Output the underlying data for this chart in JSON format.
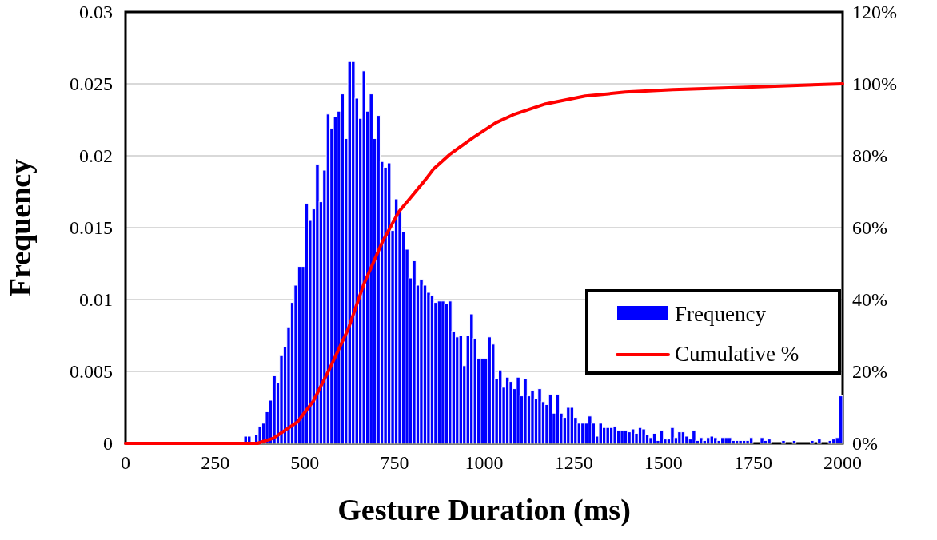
{
  "chart_data": {
    "type": "histogram",
    "xlabel": "Gesture Duration (ms)",
    "ylabel": "Frequency",
    "bins": [
      330,
      340,
      350,
      360,
      370,
      380,
      390,
      400,
      410,
      420,
      430,
      440,
      450,
      460,
      470,
      480,
      490,
      500,
      510,
      520,
      530,
      540,
      550,
      560,
      570,
      580,
      590,
      600,
      610,
      620,
      630,
      640,
      650,
      660,
      670,
      680,
      690,
      700,
      710,
      720,
      730,
      740,
      750,
      760,
      770,
      780,
      790,
      800,
      810,
      820,
      830,
      840,
      850,
      860,
      870,
      880,
      890,
      900,
      910,
      920,
      930,
      940,
      950,
      960,
      970,
      980,
      990,
      1000,
      1010,
      1020,
      1030,
      1040,
      1050,
      1060,
      1070,
      1080,
      1090,
      1100,
      1110,
      1120,
      1130,
      1140,
      1150,
      1160,
      1170,
      1180,
      1190,
      1200,
      1210,
      1220,
      1230,
      1240,
      1250,
      1260,
      1270,
      1280,
      1290,
      1300,
      1310,
      1320,
      1330,
      1340,
      1350,
      1360,
      1370,
      1380,
      1390,
      1400,
      1410,
      1420,
      1430,
      1440,
      1450,
      1460,
      1470,
      1480,
      1490,
      1500,
      1510,
      1520,
      1530,
      1540,
      1550,
      1560,
      1570,
      1580,
      1590,
      1600,
      1610,
      1620,
      1630,
      1640,
      1650,
      1660,
      1670,
      1680,
      1690,
      1700,
      1710,
      1720,
      1730,
      1740,
      1750,
      1770,
      1780,
      1790,
      1800,
      1830,
      1840,
      1860,
      1870,
      1910,
      1920,
      1930,
      1940,
      1960,
      1970,
      1980,
      1990,
      2000
    ],
    "series": [
      {
        "name": "Frequency",
        "color": "#0000ff",
        "values": [
          0.0005,
          0.0005,
          0,
          0.0006,
          0.0012,
          0.0014,
          0.0022,
          0.003,
          0.0047,
          0.0042,
          0.0061,
          0.0067,
          0.0081,
          0.0098,
          0.011,
          0.0123,
          0.0123,
          0.0167,
          0.0155,
          0.0163,
          0.0194,
          0.0168,
          0.019,
          0.0229,
          0.0219,
          0.0227,
          0.0231,
          0.0243,
          0.0212,
          0.0266,
          0.0266,
          0.024,
          0.0226,
          0.0259,
          0.0231,
          0.0243,
          0.0212,
          0.0228,
          0.0196,
          0.0192,
          0.0195,
          0.0148,
          0.017,
          0.0161,
          0.0147,
          0.0135,
          0.0115,
          0.0127,
          0.011,
          0.0114,
          0.011,
          0.0105,
          0.0103,
          0.0098,
          0.0099,
          0.0099,
          0.0097,
          0.0099,
          0.0078,
          0.0074,
          0.0075,
          0.0054,
          0.0075,
          0.009,
          0.0073,
          0.0059,
          0.0059,
          0.0059,
          0.0074,
          0.0069,
          0.0045,
          0.0051,
          0.0039,
          0.0046,
          0.0043,
          0.0038,
          0.0046,
          0.0033,
          0.0045,
          0.0033,
          0.0037,
          0.0031,
          0.0038,
          0.0029,
          0.0027,
          0.0034,
          0.0021,
          0.0034,
          0.0021,
          0.0018,
          0.0025,
          0.0025,
          0.0018,
          0.0014,
          0.0014,
          0.0014,
          0.0019,
          0.0014,
          0.0005,
          0.0014,
          0.0011,
          0.0011,
          0.0011,
          0.0012,
          0.0009,
          0.0009,
          0.0009,
          0.0008,
          0.001,
          0.0007,
          0.0011,
          0.001,
          0.0006,
          0.0004,
          0.0007,
          0.0002,
          0.0009,
          0.0003,
          0.0003,
          0.0011,
          0.0004,
          0.0008,
          0.0008,
          0.0005,
          0.0003,
          0.0009,
          0.0002,
          0.0004,
          0.0002,
          0.0004,
          0.0005,
          0.0004,
          0.0002,
          0.0004,
          0.0004,
          0.0004,
          0.0002,
          0.0002,
          0.0002,
          0.0002,
          0.0002,
          0.0004,
          0,
          0.0004,
          0.0002,
          0.0003,
          0,
          0.0002,
          0,
          0.0002,
          0,
          0.0002,
          0,
          0.0003,
          0,
          0.0002,
          0.0003,
          0.0004,
          0.0033
        ]
      },
      {
        "name": "Cumulative %",
        "type": "line",
        "axis": "y2",
        "color": "#ff0000",
        "x": [
          0,
          368,
          412,
          479,
          524,
          569,
          621,
          665,
          717,
          762,
          836,
          858,
          903,
          970,
          1033,
          1081,
          1171,
          1282,
          1394,
          1527,
          1717,
          2000
        ],
        "values": [
          0,
          0,
          1.4,
          5.9,
          11.8,
          20.7,
          31.8,
          44.4,
          56.2,
          64.4,
          73.3,
          76.2,
          80.3,
          85.1,
          89.2,
          91.4,
          94.4,
          96.6,
          97.7,
          98.4,
          99,
          100
        ]
      }
    ],
    "xlim": [
      0,
      2000
    ],
    "xticks": [
      0,
      250,
      500,
      750,
      1000,
      1250,
      1500,
      1750,
      2000
    ],
    "ylim": [
      0,
      0.03
    ],
    "yticks": [
      0,
      0.005,
      0.01,
      0.015,
      0.02,
      0.025,
      0.03
    ],
    "y2lim": [
      0,
      120
    ],
    "y2ticks": [
      {
        "value": 0,
        "label": "0%"
      },
      {
        "value": 20,
        "label": "20%"
      },
      {
        "value": 40,
        "label": "40%"
      },
      {
        "value": 60,
        "label": "60%"
      },
      {
        "value": 80,
        "label": "80%"
      },
      {
        "value": 100,
        "label": "100%"
      },
      {
        "value": 120,
        "label": "120%"
      }
    ],
    "grid": "y",
    "legend": "right"
  }
}
